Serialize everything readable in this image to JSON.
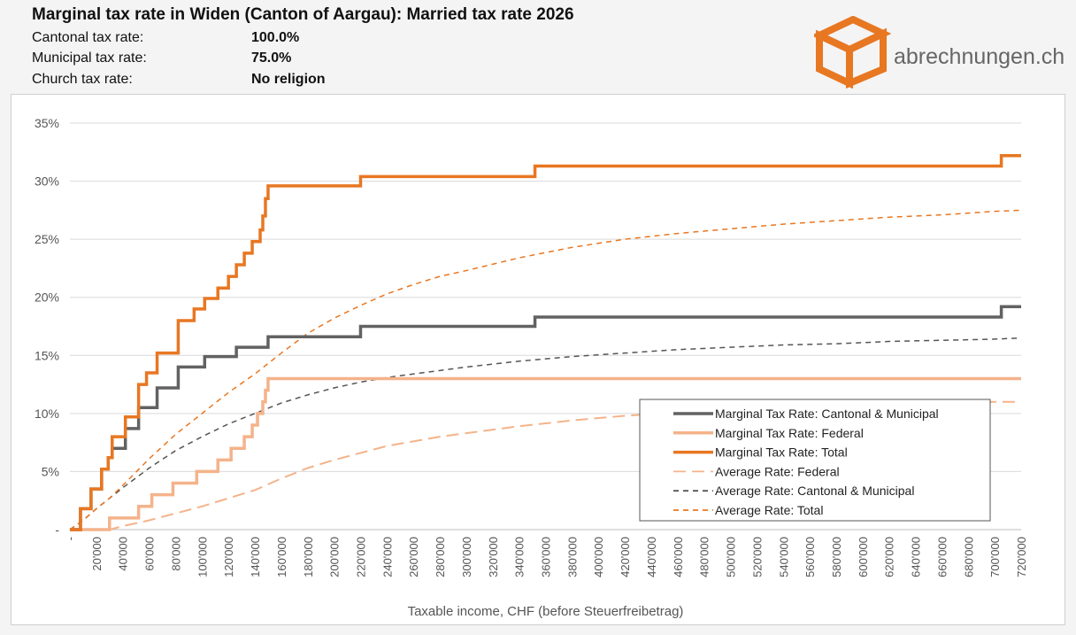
{
  "header": {
    "title": "Marginal tax rate in Widen (Canton of Aargau): Married tax rate 2026",
    "params": [
      {
        "label": "Cantonal tax rate:",
        "value": "100.0%"
      },
      {
        "label": "Municipal tax rate:",
        "value": "75.0%"
      },
      {
        "label": "Church tax rate:",
        "value": "No religion"
      }
    ]
  },
  "logo": {
    "text": "abrechnungen.ch",
    "icon": "cube-icon",
    "color": "#e87722"
  },
  "chart_data": {
    "type": "line",
    "xlabel": "Taxable income, CHF (before Steuerfreibetrag)",
    "ylabel": "",
    "xlim": [
      0,
      720000
    ],
    "ylim": [
      0,
      35
    ],
    "grid": true,
    "legend_position": "bottom-right",
    "x_ticks": [
      0,
      20000,
      40000,
      60000,
      80000,
      100000,
      120000,
      140000,
      160000,
      180000,
      200000,
      220000,
      240000,
      260000,
      280000,
      300000,
      320000,
      340000,
      360000,
      380000,
      400000,
      420000,
      440000,
      460000,
      480000,
      500000,
      520000,
      540000,
      560000,
      580000,
      600000,
      620000,
      640000,
      660000,
      680000,
      700000,
      720000
    ],
    "x_tick_labels": [
      "-",
      "20'000",
      "40'000",
      "60'000",
      "80'000",
      "100'000",
      "120'000",
      "140'000",
      "160'000",
      "180'000",
      "200'000",
      "220'000",
      "240'000",
      "260'000",
      "280'000",
      "300'000",
      "320'000",
      "340'000",
      "360'000",
      "380'000",
      "400'000",
      "420'000",
      "440'000",
      "460'000",
      "480'000",
      "500'000",
      "520'000",
      "540'000",
      "560'000",
      "580'000",
      "600'000",
      "620'000",
      "640'000",
      "660'000",
      "680'000",
      "700'000",
      "720'000"
    ],
    "y_ticks": [
      0,
      5,
      10,
      15,
      20,
      25,
      30,
      35
    ],
    "y_tick_labels": [
      "-",
      "5%",
      "10%",
      "15%",
      "20%",
      "25%",
      "30%",
      "35%"
    ],
    "series": [
      {
        "name": "Marginal Tax Rate: Cantonal & Municipal",
        "color": "#626262",
        "dash": "solid",
        "width": 3.5,
        "step": true,
        "x": [
          0,
          8000,
          16000,
          24000,
          29000,
          32000,
          42000,
          52000,
          66000,
          82000,
          102000,
          126000,
          150000,
          220000,
          352000,
          705000,
          720000
        ],
        "y": [
          0,
          1.8,
          3.5,
          5.2,
          6.2,
          7.0,
          8.7,
          10.5,
          12.2,
          14.0,
          14.9,
          15.7,
          16.6,
          17.5,
          18.3,
          19.2,
          19.2
        ]
      },
      {
        "name": "Marginal Tax Rate: Federal",
        "color": "#f4b38a",
        "dash": "solid",
        "width": 3.5,
        "step": true,
        "x": [
          0,
          30000,
          52000,
          62000,
          78000,
          96000,
          112000,
          122000,
          132000,
          138000,
          142000,
          146000,
          148000,
          150000,
          720000
        ],
        "y": [
          0,
          1.0,
          2.0,
          3.0,
          4.0,
          5.0,
          6.0,
          7.0,
          8.0,
          9.0,
          10.0,
          11.0,
          12.0,
          13.0,
          13.0
        ]
      },
      {
        "name": "Marginal Tax Rate: Total",
        "color": "#e87722",
        "dash": "solid",
        "width": 3.5,
        "step": true,
        "x": [
          0,
          8000,
          16000,
          24000,
          29000,
          32000,
          42000,
          52000,
          58000,
          66000,
          82000,
          94000,
          102000,
          112000,
          120000,
          126000,
          132000,
          138000,
          144000,
          146000,
          148000,
          150000,
          220000,
          352000,
          705000,
          720000
        ],
        "y": [
          0,
          1.8,
          3.5,
          5.2,
          6.2,
          8.0,
          9.7,
          12.5,
          13.5,
          15.2,
          18.0,
          19.0,
          19.9,
          20.8,
          21.8,
          22.8,
          23.8,
          24.8,
          25.8,
          27.0,
          28.5,
          29.6,
          30.4,
          31.3,
          32.2,
          32.2
        ]
      },
      {
        "name": "Average Rate: Federal",
        "color": "#f4b38a",
        "dash": "long-dash",
        "width": 2,
        "x": [
          0,
          30000,
          40000,
          60000,
          80000,
          100000,
          120000,
          140000,
          160000,
          180000,
          200000,
          220000,
          240000,
          260000,
          280000,
          300000,
          340000,
          380000,
          420000,
          460000,
          500000,
          540000,
          580000,
          620000,
          660000,
          700000,
          720000
        ],
        "y": [
          0,
          0,
          0.3,
          0.8,
          1.4,
          2.0,
          2.7,
          3.4,
          4.4,
          5.3,
          6.0,
          6.6,
          7.2,
          7.6,
          8.0,
          8.3,
          8.9,
          9.4,
          9.8,
          10.1,
          10.3,
          10.5,
          10.6,
          10.8,
          10.9,
          11.0,
          11.0
        ]
      },
      {
        "name": "Average Rate: Cantonal & Municipal",
        "color": "#555555",
        "dash": "short-dash",
        "width": 1.5,
        "x": [
          0,
          10000,
          20000,
          30000,
          40000,
          60000,
          80000,
          100000,
          120000,
          140000,
          160000,
          180000,
          200000,
          220000,
          240000,
          260000,
          280000,
          300000,
          340000,
          380000,
          420000,
          460000,
          500000,
          540000,
          580000,
          620000,
          660000,
          700000,
          720000
        ],
        "y": [
          0,
          0.8,
          1.8,
          2.7,
          3.6,
          5.3,
          6.8,
          8.0,
          9.1,
          10.0,
          10.9,
          11.6,
          12.2,
          12.7,
          13.1,
          13.4,
          13.7,
          14.0,
          14.5,
          14.9,
          15.2,
          15.5,
          15.7,
          15.9,
          16.0,
          16.2,
          16.3,
          16.4,
          16.5
        ]
      },
      {
        "name": "Average Rate: Total",
        "color": "#e87722",
        "dash": "short-dash",
        "width": 1.5,
        "x": [
          0,
          10000,
          20000,
          30000,
          40000,
          60000,
          80000,
          100000,
          120000,
          140000,
          160000,
          180000,
          200000,
          220000,
          240000,
          260000,
          280000,
          300000,
          340000,
          380000,
          420000,
          460000,
          500000,
          540000,
          580000,
          620000,
          660000,
          700000,
          720000
        ],
        "y": [
          0,
          0.8,
          1.8,
          2.7,
          3.8,
          6.1,
          8.2,
          10.0,
          11.8,
          13.4,
          15.2,
          16.9,
          18.2,
          19.3,
          20.3,
          21.1,
          21.8,
          22.3,
          23.4,
          24.3,
          25.0,
          25.5,
          25.9,
          26.3,
          26.6,
          26.9,
          27.1,
          27.4,
          27.5
        ]
      }
    ]
  }
}
